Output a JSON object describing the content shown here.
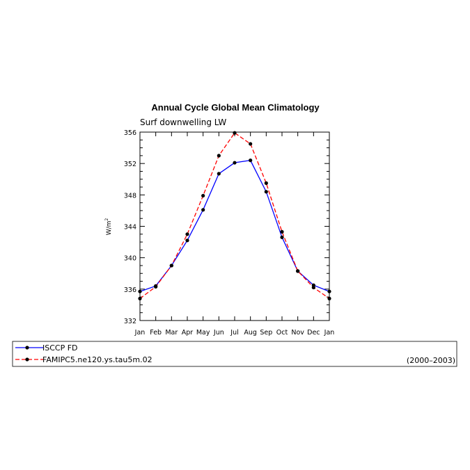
{
  "chart_data": {
    "type": "line",
    "title": "Annual Cycle Global Mean Climatology",
    "subtitle": "Surf downwelling LW",
    "xlabel": "",
    "ylabel": "W/m",
    "ylabel_sup": "2",
    "categories": [
      "Jan",
      "Feb",
      "Mar",
      "Apr",
      "May",
      "Jun",
      "Jul",
      "Aug",
      "Sep",
      "Oct",
      "Nov",
      "Dec",
      "Jan"
    ],
    "ylim": [
      332,
      356
    ],
    "yticks": [
      332,
      336,
      340,
      344,
      348,
      352,
      356
    ],
    "series": [
      {
        "name": "ISCCP FD",
        "color": "#0000ff",
        "dash": "solid",
        "values": [
          335.7,
          336.4,
          339.0,
          342.2,
          346.1,
          350.7,
          352.1,
          352.4,
          348.4,
          342.6,
          338.3,
          336.5,
          335.7
        ]
      },
      {
        "name": "FAMIPC5.ne120.ys.tau5m.02",
        "color": "#ff0000",
        "dash": "dashed",
        "values": [
          334.8,
          336.3,
          339.0,
          343.0,
          347.9,
          353.0,
          355.9,
          354.5,
          349.5,
          343.3,
          338.3,
          336.2,
          334.8
        ]
      }
    ],
    "legend_placement": "bottom",
    "legend_note": "(2000–2003)",
    "grid": false
  }
}
